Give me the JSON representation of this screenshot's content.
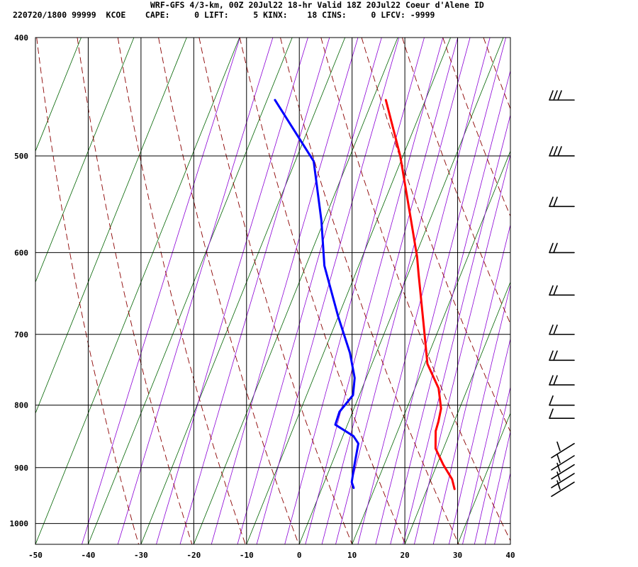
{
  "header": {
    "title": "WRF-GFS 4/3-km, 00Z 20Jul22 18-hr Valid 18Z 20Jul22 Coeur d'Alene ID",
    "stats": "220720/1800 99999  KCOE    CAPE:     0 LIFT:     5 KINX:    18 CINS:     0 LFCV: -9999"
  },
  "chart_data": {
    "type": "line",
    "title": "",
    "xlabel": "",
    "ylabel": "",
    "xlim": [
      -50,
      40
    ],
    "ylim": [
      1040,
      400
    ],
    "y_scale": "log",
    "grid": true,
    "x_ticks": [
      -50,
      -40,
      -30,
      -20,
      -10,
      0,
      10,
      20,
      30,
      40
    ],
    "x_tick_labels": [
      "-50",
      "-40",
      "-30",
      "-20",
      "-10",
      "0",
      "10",
      "20",
      "30",
      "40"
    ],
    "y_ticks": [
      400,
      500,
      600,
      700,
      800,
      900,
      1000
    ],
    "y_tick_labels": [
      "400",
      "500",
      "600",
      "700",
      "800",
      "900",
      "1000"
    ],
    "colors": {
      "temperature": "#ff0000",
      "dewpoint": "#0000ff",
      "isotherms": "#006400",
      "dry_adiabats": "#8b0000",
      "mixing_ratio": "#8b00d6",
      "wind_barbs": "#000000"
    },
    "series": [
      {
        "key": "temperature",
        "points": [
          [
            -17.5,
            450
          ],
          [
            -10.5,
            500
          ],
          [
            -3.7,
            563
          ],
          [
            0.4,
            605
          ],
          [
            2.0,
            625
          ],
          [
            7.0,
            690
          ],
          [
            10.5,
            740
          ],
          [
            14.5,
            775
          ],
          [
            16.5,
            805
          ],
          [
            17.0,
            825
          ],
          [
            17.2,
            840
          ],
          [
            18.5,
            868
          ],
          [
            21.2,
            895
          ],
          [
            24.0,
            920
          ],
          [
            25.2,
            937
          ]
        ]
      },
      {
        "key": "dewpoint",
        "points": [
          [
            -38.5,
            450
          ],
          [
            -26.5,
            505
          ],
          [
            -20.5,
            565
          ],
          [
            -16.5,
            615
          ],
          [
            -10.0,
            677
          ],
          [
            -5.0,
            725
          ],
          [
            -2.2,
            760
          ],
          [
            -1.2,
            785
          ],
          [
            -2.5,
            810
          ],
          [
            -2.3,
            830
          ],
          [
            2.0,
            848
          ],
          [
            3.5,
            860
          ],
          [
            4.5,
            900
          ],
          [
            5.2,
            925
          ],
          [
            6.0,
            935
          ]
        ]
      }
    ],
    "wind_barbs": [
      {
        "pressure": 450,
        "barb": "FFF-"
      },
      {
        "pressure": 500,
        "barb": "FFF-"
      },
      {
        "pressure": 550,
        "barb": "FF-"
      },
      {
        "pressure": 600,
        "barb": "FF-"
      },
      {
        "pressure": 650,
        "barb": "FF-"
      },
      {
        "pressure": 700,
        "barb": "FF-"
      },
      {
        "pressure": 735,
        "barb": "FF-"
      },
      {
        "pressure": 770,
        "barb": "FF-"
      },
      {
        "pressure": 800,
        "barb": "F-"
      },
      {
        "pressure": 820,
        "barb": "F-"
      },
      {
        "pressure": 860,
        "barb": "V"
      },
      {
        "pressure": 880,
        "barb": "V"
      },
      {
        "pressure": 895,
        "barb": "V"
      },
      {
        "pressure": 910,
        "barb": "V"
      },
      {
        "pressure": 925,
        "barb": "V"
      }
    ]
  }
}
